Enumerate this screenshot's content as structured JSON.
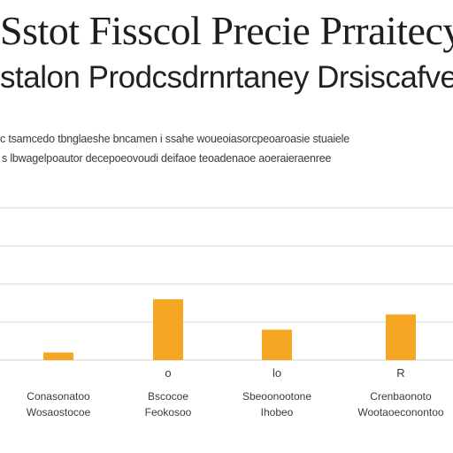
{
  "chart_data": {
    "type": "bar",
    "title_lines": [
      "Sstot Fisscol Precie Prraitecyr",
      "stalon Prodcsdrnrtaney Drsiscafve"
    ],
    "subtitle_lines": [
      "c tsamcedo tbnglaeshe bncamen i ssahe woueoiasorcpeoaroasie stuaiele",
      "s lbwagelpoautor decepoeovoudi deifaoe teoadenaoe aoeraieraenree"
    ],
    "categories": [
      "Conasonatoo Wosaostocoe",
      "Bscocoe Feokosoo",
      "Sbeoonootone Ihobeo",
      "Crenbaonoto Wootaoeconontoo"
    ],
    "category_tops": [
      "",
      "o",
      "lo",
      "R"
    ],
    "values": [
      1,
      8,
      4,
      6
    ],
    "ylim": [
      0,
      20
    ],
    "grid": true,
    "bar_color": "#f5a623",
    "grid_color": "#d9d9d9"
  }
}
